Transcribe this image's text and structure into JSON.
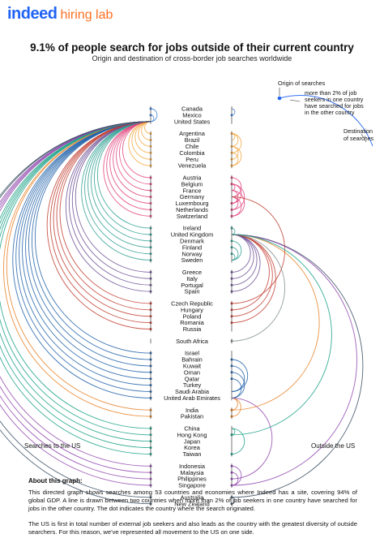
{
  "brand": {
    "name": "indeed",
    "sub": "hiring lab",
    "primary_color": "#2164f3",
    "accent_color": "#ff6f22"
  },
  "title": "9.1% of people search for jobs outside of their current country",
  "subtitle": "Origin and destination of cross-border job searches worldwide",
  "legend": {
    "origin": "Origin of searches",
    "threshold_lines": [
      "more than 2% of job",
      "seekers in one country",
      "have searched for jobs",
      "in the other country"
    ],
    "destination_lines": [
      "Destination",
      "of searches"
    ]
  },
  "side_labels": {
    "left": "Searches to the US",
    "right": "Outside the US"
  },
  "countries": [
    "Canada",
    "Mexico",
    "United States",
    "Argentina",
    "Brazil",
    "Chile",
    "Colombia",
    "Peru",
    "Venezuela",
    "Austria",
    "Belgium",
    "France",
    "Germany",
    "Luxembourg",
    "Netherlands",
    "Switzerland",
    "Ireland",
    "United Kingdom",
    "Denmark",
    "Finland",
    "Norway",
    "Sweden",
    "Greece",
    "Italy",
    "Portugal",
    "Spain",
    "Czech Republic",
    "Hungary",
    "Poland",
    "Romania",
    "Russia",
    "South Africa",
    "Israel",
    "Bahrain",
    "Kuwait",
    "Oman",
    "Qatar",
    "Turkey",
    "Saudi Arabia",
    "United Arab Emirates",
    "India",
    "Pakistan",
    "China",
    "Hong Kong",
    "Japan",
    "Korea",
    "Taiwan",
    "Indonesia",
    "Malaysia",
    "Philippines",
    "Singapore",
    "Australia",
    "New Zealand"
  ],
  "about_title": "About this graph:",
  "about_p1": "This directed graph shows searches among 53 countries and economies where Indeed has a site, covering 94% of global GDP. A line is drawn between two countries when more than 2% of job seekers in one country have searched for jobs in the other country. The dot indicates the country where the search originated.",
  "about_p2": "The US is first in total number of external job seekers and also leads as the country with the greatest diversity of outside searchers. For this reason, we've represented all movement to the US on one side.",
  "chart_data": {
    "type": "directed-graph",
    "nodes": 53,
    "threshold": "more than 2% of job seekers",
    "region_colors": {
      "north_america": "#3a7bd5",
      "latin_america": "#f2a43a",
      "western_europe": "#e0407a",
      "nordics_uk": "#2a9d8f",
      "southern_europe": "#6a4c93",
      "eastern_europe": "#c0392b",
      "africa": "#7f8c8d",
      "middle_east": "#1d5fa8",
      "south_asia": "#e67e22",
      "east_asia": "#16a085",
      "southeast_asia": "#8e44ad",
      "oceania": "#34495e"
    },
    "edges_to_us": [
      "Canada",
      "Mexico",
      "Argentina",
      "Brazil",
      "Chile",
      "Colombia",
      "Peru",
      "Venezuela",
      "Austria",
      "Belgium",
      "France",
      "Germany",
      "Luxembourg",
      "Netherlands",
      "Switzerland",
      "Ireland",
      "United Kingdom",
      "Denmark",
      "Finland",
      "Norway",
      "Sweden",
      "Greece",
      "Italy",
      "Portugal",
      "Spain",
      "Czech Republic",
      "Hungary",
      "Poland",
      "Romania",
      "Russia",
      "Israel",
      "Bahrain",
      "Kuwait",
      "Oman",
      "Qatar",
      "Turkey",
      "Saudi Arabia",
      "United Arab Emirates",
      "India",
      "Pakistan",
      "China",
      "Hong Kong",
      "Japan",
      "Korea",
      "Taiwan",
      "Indonesia",
      "Malaysia",
      "Philippines",
      "Singapore",
      "Australia",
      "New Zealand"
    ],
    "edges_other": [
      [
        "Mexico",
        "Canada"
      ],
      [
        "Argentina",
        "Brazil"
      ],
      [
        "Chile",
        "Argentina"
      ],
      [
        "Colombia",
        "Argentina"
      ],
      [
        "Peru",
        "Chile"
      ],
      [
        "Venezuela",
        "Colombia"
      ],
      [
        "Venezuela",
        "Chile"
      ],
      [
        "Austria",
        "Germany"
      ],
      [
        "Belgium",
        "France"
      ],
      [
        "Luxembourg",
        "France"
      ],
      [
        "Luxembourg",
        "Belgium"
      ],
      [
        "Switzerland",
        "Germany"
      ],
      [
        "Switzerland",
        "France"
      ],
      [
        "Netherlands",
        "Germany"
      ],
      [
        "Belgium",
        "Netherlands"
      ],
      [
        "Ireland",
        "United Kingdom"
      ],
      [
        "Denmark",
        "Sweden"
      ],
      [
        "Finland",
        "Sweden"
      ],
      [
        "Norway",
        "Sweden"
      ],
      [
        "Greece",
        "United Kingdom"
      ],
      [
        "Italy",
        "United Kingdom"
      ],
      [
        "Portugal",
        "United Kingdom"
      ],
      [
        "Spain",
        "United Kingdom"
      ],
      [
        "Poland",
        "United Kingdom"
      ],
      [
        "Romania",
        "United Kingdom"
      ],
      [
        "Hungary",
        "United Kingdom"
      ],
      [
        "Czech Republic",
        "Germany"
      ],
      [
        "South Africa",
        "United Kingdom"
      ],
      [
        "India",
        "United Arab Emirates"
      ],
      [
        "Pakistan",
        "United Arab Emirates"
      ],
      [
        "Bahrain",
        "Saudi Arabia"
      ],
      [
        "Kuwait",
        "Saudi Arabia"
      ],
      [
        "Oman",
        "United Arab Emirates"
      ],
      [
        "Qatar",
        "United Arab Emirates"
      ],
      [
        "Philippines",
        "United Arab Emirates"
      ],
      [
        "Hong Kong",
        "China"
      ],
      [
        "Taiwan",
        "China"
      ],
      [
        "Malaysia",
        "Singapore"
      ],
      [
        "Indonesia",
        "Singapore"
      ],
      [
        "New Zealand",
        "Australia"
      ],
      [
        "Australia",
        "United Kingdom"
      ],
      [
        "India",
        "United Kingdom"
      ],
      [
        "Singapore",
        "United Kingdom"
      ],
      [
        "Hong Kong",
        "United Kingdom"
      ]
    ]
  }
}
